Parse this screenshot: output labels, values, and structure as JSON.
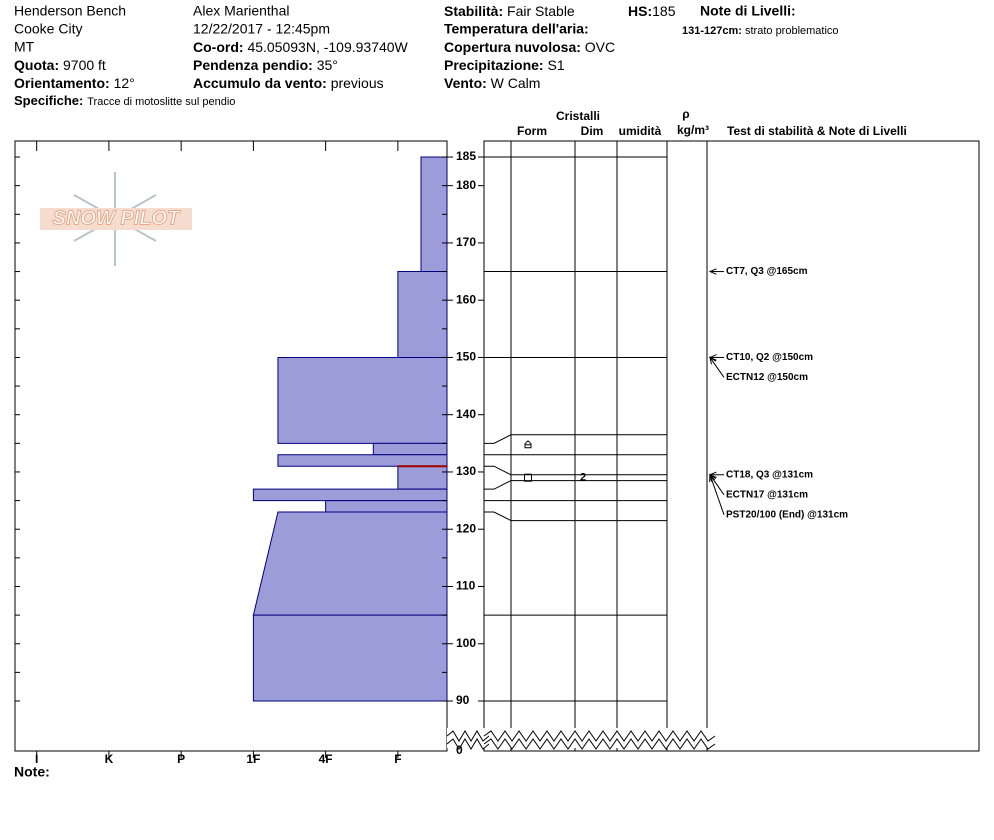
{
  "header": {
    "location": "Henderson Bench",
    "area": "Cooke City",
    "state": "MT",
    "fields_left": [
      {
        "label": "Quota:",
        "value": "9700 ft"
      },
      {
        "label": "Orientamento:",
        "value": "12°"
      }
    ],
    "specifiche": {
      "label": "Specifiche:",
      "value": "Tracce di motoslitte sul pendio"
    },
    "observer": "Alex Marienthal",
    "datetime": "12/22/2017 - 12:45pm",
    "fields_mid": [
      {
        "label": "Co-ord:",
        "value": "45.05093N, -109.93740W"
      },
      {
        "label": "Pendenza pendio:",
        "value": "35°"
      },
      {
        "label": "Accumulo da vento:",
        "value": "previous"
      }
    ],
    "fields_right": [
      {
        "label": "Stabilità:",
        "value": "Fair Stable"
      },
      {
        "label": "Temperatura dell'aria:"
      },
      {
        "label": "Copertura nuvolosa:",
        "value": "OVC"
      },
      {
        "label": "Precipitazione:",
        "value": "S1"
      },
      {
        "label": "Vento:",
        "value": "W Calm"
      }
    ],
    "hs": {
      "label": "HS:",
      "value": 185
    },
    "layer_notes": {
      "label": "Note di Livelli:",
      "items": [
        {
          "label": "131-127cm:",
          "value": "strato problematico"
        }
      ]
    }
  },
  "columns": {
    "crystals": "Cristalli",
    "form": "Form",
    "dim": "Dim",
    "moisture": "umidità",
    "density_symbol": "ρ",
    "density_unit": "kg/m³",
    "tests": "Test di stabilità & Note di Livelli"
  },
  "notes_label": "Note:",
  "logo": "SNOW PILOT",
  "chart_data": {
    "type": "snow_profile",
    "ylim": [
      90,
      187.8
    ],
    "yticks": [
      90,
      100,
      110,
      120,
      130,
      140,
      150,
      160,
      170,
      180,
      185
    ],
    "ybreak": 0,
    "xlim": [
      0.7,
      6.68
    ],
    "xticks": [
      {
        "value": 1,
        "label": "I"
      },
      {
        "value": 2,
        "label": "K"
      },
      {
        "value": 3,
        "label": "P"
      },
      {
        "value": 4,
        "label": "1F"
      },
      {
        "value": 5,
        "label": "4F"
      },
      {
        "value": 6,
        "label": "F"
      }
    ],
    "color": "#9c9cd8",
    "critical_height": 131,
    "layers": [
      {
        "top": 185,
        "bottom": 165,
        "hardness": 6.32
      },
      {
        "top": 165,
        "bottom": 150,
        "hardness": 6
      },
      {
        "top": 150,
        "bottom": 135,
        "hardness": 4.34
      },
      {
        "top": 135,
        "bottom": 133,
        "hardness": 5.66
      },
      {
        "top": 133,
        "bottom": 131,
        "hardness": 4.34
      },
      {
        "top": 131,
        "bottom": 127,
        "hardness": 6,
        "dim": 2
      },
      {
        "top": 127,
        "bottom": 125,
        "hardness": 4
      },
      {
        "top": 125,
        "bottom": 123,
        "hardness": 5
      },
      {
        "top": 123,
        "bottom": 105,
        "hardness": 4.34,
        "hardness_bottom": 4
      },
      {
        "top": 105,
        "bottom": 90,
        "hardness": 4
      }
    ],
    "tests": [
      {
        "label": "CT7, Q3 @165cm",
        "height": 165
      },
      {
        "label": "CT10, Q2 @150cm",
        "height": 150
      },
      {
        "label": "ECTN12 @150cm",
        "height": 150
      },
      {
        "label": "CT18, Q3 @131cm",
        "height": 131
      },
      {
        "label": "ECTN17 @131cm",
        "height": 131
      },
      {
        "label": "PST20/100 (End) @131cm",
        "height": 131
      }
    ]
  }
}
